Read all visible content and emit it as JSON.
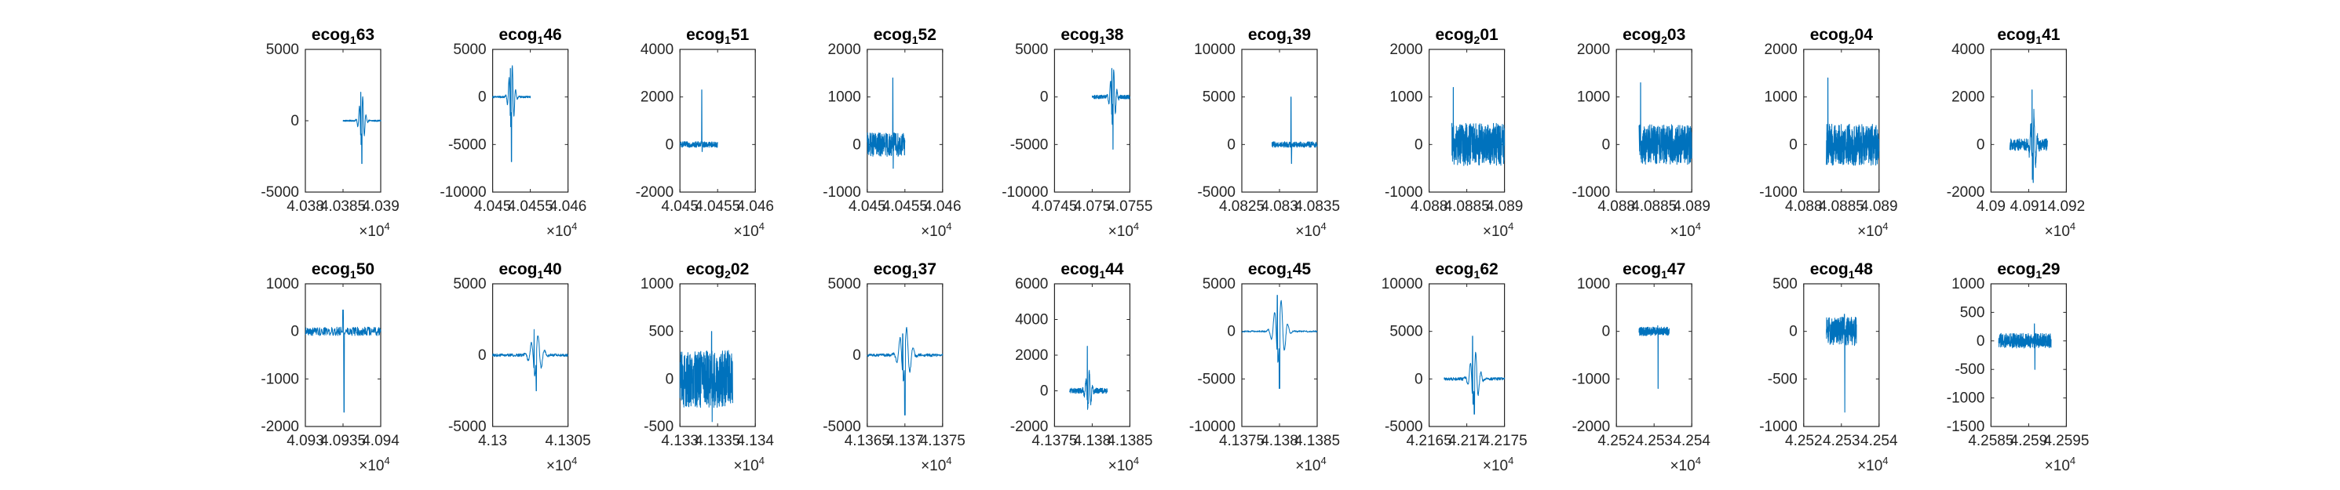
{
  "chart_data": [
    {
      "type": "line",
      "title": {
        "base": "ecog",
        "sub": "1",
        "rest": "63"
      },
      "xlim": [
        4.038,
        4.039
      ],
      "ylim": [
        -5000,
        5000
      ],
      "xticks": [
        "4.038",
        "4.0385",
        "4.039"
      ],
      "yticks": [
        "-5000",
        "0",
        "5000"
      ],
      "x_multiplier": "×10",
      "x_exponent": "4",
      "trace": {
        "x0": 4.0385,
        "x1": 4.039,
        "base": 0,
        "spike": -3000,
        "spikePeak": 2000,
        "spikeAt": 0.5,
        "noise": 50,
        "shape": "wave"
      }
    },
    {
      "type": "line",
      "title": {
        "base": "ecog",
        "sub": "1",
        "rest": "46"
      },
      "xlim": [
        4.045,
        4.046
      ],
      "ylim": [
        -10000,
        5000
      ],
      "xticks": [
        "4.045",
        "4.0455",
        "4.046"
      ],
      "yticks": [
        "-10000",
        "-5000",
        "0",
        "5000"
      ],
      "x_multiplier": "×10",
      "x_exponent": "4",
      "trace": {
        "x0": 4.045,
        "x1": 4.0455,
        "base": 0,
        "spike": -6800,
        "spikePeak": 3000,
        "spikeAt": 0.5,
        "noise": 100,
        "shape": "wave"
      }
    },
    {
      "type": "line",
      "title": {
        "base": "ecog",
        "sub": "1",
        "rest": "51"
      },
      "xlim": [
        4.045,
        4.046
      ],
      "ylim": [
        -2000,
        4000
      ],
      "xticks": [
        "4.045",
        "4.0455",
        "4.046"
      ],
      "yticks": [
        "-2000",
        "0",
        "2000",
        "4000"
      ],
      "x_multiplier": "×10",
      "x_exponent": "4",
      "trace": {
        "x0": 4.045,
        "x1": 4.0455,
        "base": 0,
        "spike": -300,
        "spikePeak": 2300,
        "spikeAt": 0.58,
        "noise": 120,
        "shape": "spike"
      }
    },
    {
      "type": "line",
      "title": {
        "base": "ecog",
        "sub": "1",
        "rest": "52"
      },
      "xlim": [
        4.045,
        4.046
      ],
      "ylim": [
        -1000,
        2000
      ],
      "xticks": [
        "4.045",
        "4.0455",
        "4.046"
      ],
      "yticks": [
        "-1000",
        "0",
        "1000",
        "2000"
      ],
      "x_multiplier": "×10",
      "x_exponent": "4",
      "trace": {
        "x0": 4.045,
        "x1": 4.0455,
        "base": 0,
        "spike": -500,
        "spikePeak": 1400,
        "spikeAt": 0.68,
        "noise": 250,
        "shape": "spike"
      }
    },
    {
      "type": "line",
      "title": {
        "base": "ecog",
        "sub": "1",
        "rest": "38"
      },
      "xlim": [
        4.0745,
        4.0755
      ],
      "ylim": [
        -10000,
        5000
      ],
      "xticks": [
        "4.0745",
        "4.075",
        "4.0755"
      ],
      "yticks": [
        "-10000",
        "-5000",
        "0",
        "5000"
      ],
      "x_multiplier": "×10",
      "x_exponent": "4",
      "trace": {
        "x0": 4.075,
        "x1": 4.0755,
        "base": 0,
        "spike": -5500,
        "spikePeak": 3000,
        "spikeAt": 0.55,
        "noise": 200,
        "shape": "wave"
      }
    },
    {
      "type": "line",
      "title": {
        "base": "ecog",
        "sub": "1",
        "rest": "39"
      },
      "xlim": [
        4.0825,
        4.0835
      ],
      "ylim": [
        -5000,
        10000
      ],
      "xticks": [
        "4.0825",
        "4.083",
        "4.0835"
      ],
      "yticks": [
        "-5000",
        "0",
        "5000",
        "10000"
      ],
      "x_multiplier": "×10",
      "x_exponent": "4",
      "trace": {
        "x0": 4.0829,
        "x1": 4.0835,
        "base": 0,
        "spike": -2000,
        "spikePeak": 5000,
        "spikeAt": 0.42,
        "noise": 300,
        "shape": "spike"
      }
    },
    {
      "type": "line",
      "title": {
        "base": "ecog",
        "sub": "2",
        "rest": "01"
      },
      "xlim": [
        4.088,
        4.089
      ],
      "ylim": [
        -1000,
        2000
      ],
      "xticks": [
        "4.088",
        "4.0885",
        "4.089"
      ],
      "yticks": [
        "-1000",
        "0",
        "1000",
        "2000"
      ],
      "x_multiplier": "×10",
      "x_exponent": "4",
      "trace": {
        "x0": 4.0883,
        "x1": 4.089,
        "base": 0,
        "spike": -300,
        "spikePeak": 1200,
        "spikeAt": 0.03,
        "noise": 450,
        "shape": "noise"
      }
    },
    {
      "type": "line",
      "title": {
        "base": "ecog",
        "sub": "2",
        "rest": "03"
      },
      "xlim": [
        4.088,
        4.089
      ],
      "ylim": [
        -1000,
        2000
      ],
      "xticks": [
        "4.088",
        "4.0885",
        "4.089"
      ],
      "yticks": [
        "-1000",
        "0",
        "1000",
        "2000"
      ],
      "x_multiplier": "×10",
      "x_exponent": "4",
      "trace": {
        "x0": 4.0883,
        "x1": 4.089,
        "base": 0,
        "spike": -300,
        "spikePeak": 1300,
        "spikeAt": 0.03,
        "noise": 420,
        "shape": "noise"
      }
    },
    {
      "type": "line",
      "title": {
        "base": "ecog",
        "sub": "2",
        "rest": "04"
      },
      "xlim": [
        4.088,
        4.089
      ],
      "ylim": [
        -1000,
        2000
      ],
      "xticks": [
        "4.088",
        "4.0885",
        "4.089"
      ],
      "yticks": [
        "-1000",
        "0",
        "1000",
        "2000"
      ],
      "x_multiplier": "×10",
      "x_exponent": "4",
      "trace": {
        "x0": 4.0883,
        "x1": 4.089,
        "base": 0,
        "spike": -300,
        "spikePeak": 1400,
        "spikeAt": 0.03,
        "noise": 440,
        "shape": "noise"
      }
    },
    {
      "type": "line",
      "title": {
        "base": "ecog",
        "sub": "1",
        "rest": "41"
      },
      "xlim": [
        4.09,
        4.092
      ],
      "ylim": [
        -2000,
        4000
      ],
      "xticks": [
        "4.09",
        "4.091",
        "4.092"
      ],
      "yticks": [
        "-2000",
        "0",
        "2000",
        "4000"
      ],
      "x_multiplier": "×10",
      "x_exponent": "4",
      "trace": {
        "x0": 4.0905,
        "x1": 4.0915,
        "base": 0,
        "spike": -1600,
        "spikePeak": 2300,
        "spikeAt": 0.62,
        "noise": 250,
        "shape": "wave"
      }
    },
    {
      "type": "line",
      "title": {
        "base": "ecog",
        "sub": "1",
        "rest": "50"
      },
      "xlim": [
        4.093,
        4.094
      ],
      "ylim": [
        -2000,
        1000
      ],
      "xticks": [
        "4.093",
        "4.0935",
        "4.094"
      ],
      "yticks": [
        "-2000",
        "-1000",
        "0",
        "1000"
      ],
      "x_multiplier": "×10",
      "x_exponent": "4",
      "trace": {
        "x0": 4.093,
        "x1": 4.094,
        "base": 0,
        "spike": -1700,
        "spikePeak": 450,
        "spikeAt": 0.5,
        "noise": 90,
        "shape": "spike"
      }
    },
    {
      "type": "line",
      "title": {
        "base": "ecog",
        "sub": "1",
        "rest": "40"
      },
      "xlim": [
        4.13,
        4.1305
      ],
      "ylim": [
        -5000,
        5000
      ],
      "xticks": [
        "4.13",
        "4.1305"
      ],
      "yticks": [
        "-5000",
        "0",
        "5000"
      ],
      "x_multiplier": "×10",
      "x_exponent": "4",
      "trace": {
        "x0": 4.13,
        "x1": 4.1305,
        "base": 0,
        "spike": -2500,
        "spikePeak": 1800,
        "spikeAt": 0.58,
        "noise": 100,
        "shape": "wave"
      }
    },
    {
      "type": "line",
      "title": {
        "base": "ecog",
        "sub": "2",
        "rest": "02"
      },
      "xlim": [
        4.133,
        4.134
      ],
      "ylim": [
        -500,
        1000
      ],
      "xticks": [
        "4.133",
        "4.1335",
        "4.134"
      ],
      "yticks": [
        "-500",
        "0",
        "500",
        "1000"
      ],
      "x_multiplier": "×10",
      "x_exponent": "4",
      "trace": {
        "x0": 4.133,
        "x1": 4.1337,
        "base": 0,
        "spike": -450,
        "spikePeak": 500,
        "spikeAt": 0.6,
        "noise": 300,
        "shape": "noise"
      }
    },
    {
      "type": "line",
      "title": {
        "base": "ecog",
        "sub": "1",
        "rest": "37"
      },
      "xlim": [
        4.1365,
        4.1375
      ],
      "ylim": [
        -5000,
        5000
      ],
      "xticks": [
        "4.1365",
        "4.137",
        "4.1375"
      ],
      "yticks": [
        "-5000",
        "0",
        "5000"
      ],
      "x_multiplier": "×10",
      "x_exponent": "4",
      "trace": {
        "x0": 4.1365,
        "x1": 4.1375,
        "base": 0,
        "spike": -4200,
        "spikePeak": 1500,
        "spikeAt": 0.5,
        "noise": 100,
        "shape": "wave"
      }
    },
    {
      "type": "line",
      "title": {
        "base": "ecog",
        "sub": "1",
        "rest": "44"
      },
      "xlim": [
        4.1375,
        4.1385
      ],
      "ylim": [
        -2000,
        6000
      ],
      "xticks": [
        "4.1375",
        "4.138",
        "4.1385"
      ],
      "yticks": [
        "-2000",
        "0",
        "2000",
        "4000",
        "6000"
      ],
      "x_multiplier": "×10",
      "x_exponent": "4",
      "trace": {
        "x0": 4.1377,
        "x1": 4.1382,
        "base": 0,
        "spike": -700,
        "spikePeak": 2500,
        "spikeAt": 0.5,
        "noise": 150,
        "shape": "wave"
      }
    },
    {
      "type": "line",
      "title": {
        "base": "ecog",
        "sub": "1",
        "rest": "45"
      },
      "xlim": [
        4.1375,
        4.1385
      ],
      "ylim": [
        -10000,
        5000
      ],
      "xticks": [
        "4.1375",
        "4.138",
        "4.1385"
      ],
      "yticks": [
        "-10000",
        "-5000",
        "0",
        "5000"
      ],
      "x_multiplier": "×10",
      "x_exponent": "4",
      "trace": {
        "x0": 4.1375,
        "x1": 4.1385,
        "base": 0,
        "spike": -6000,
        "spikePeak": 3800,
        "spikeAt": 0.5,
        "noise": 80,
        "shape": "wave"
      }
    },
    {
      "type": "line",
      "title": {
        "base": "ecog",
        "sub": "1",
        "rest": "62"
      },
      "xlim": [
        4.2165,
        4.2175
      ],
      "ylim": [
        -5000,
        10000
      ],
      "xticks": [
        "4.2165",
        "4.217",
        "4.2175"
      ],
      "yticks": [
        "-5000",
        "0",
        "5000",
        "10000"
      ],
      "x_multiplier": "×10",
      "x_exponent": "4",
      "trace": {
        "x0": 4.2167,
        "x1": 4.2175,
        "base": 0,
        "spike": -3700,
        "spikePeak": 4500,
        "spikeAt": 0.5,
        "noise": 150,
        "shape": "wave"
      }
    },
    {
      "type": "line",
      "title": {
        "base": "ecog",
        "sub": "1",
        "rest": "47"
      },
      "xlim": [
        4.252,
        4.254
      ],
      "ylim": [
        -2000,
        1000
      ],
      "xticks": [
        "4.252",
        "4.253",
        "4.254"
      ],
      "yticks": [
        "-2000",
        "-1000",
        "0",
        "1000"
      ],
      "x_multiplier": "×10",
      "x_exponent": "4",
      "trace": {
        "x0": 4.2526,
        "x1": 4.2534,
        "base": 0,
        "spike": -1200,
        "spikePeak": 120,
        "spikeAt": 0.62,
        "noise": 90,
        "shape": "spike"
      }
    },
    {
      "type": "line",
      "title": {
        "base": "ecog",
        "sub": "1",
        "rest": "48"
      },
      "xlim": [
        4.252,
        4.254
      ],
      "ylim": [
        -1000,
        500
      ],
      "xticks": [
        "4.252",
        "4.253",
        "4.254"
      ],
      "yticks": [
        "-1000",
        "-500",
        "0",
        "500"
      ],
      "x_multiplier": "×10",
      "x_exponent": "4",
      "trace": {
        "x0": 4.2526,
        "x1": 4.2534,
        "base": 0,
        "spike": -850,
        "spikePeak": 180,
        "spikeAt": 0.6,
        "noise": 150,
        "shape": "spike"
      }
    },
    {
      "type": "line",
      "title": {
        "base": "ecog",
        "sub": "1",
        "rest": "29"
      },
      "xlim": [
        4.2585,
        4.2595
      ],
      "ylim": [
        -1500,
        1000
      ],
      "xticks": [
        "4.2585",
        "4.259",
        "4.2595"
      ],
      "yticks": [
        "-1500",
        "-1000",
        "-500",
        "0",
        "500",
        "1000"
      ],
      "x_multiplier": "×10",
      "x_exponent": "4",
      "trace": {
        "x0": 4.2586,
        "x1": 4.2593,
        "base": 0,
        "spike": -500,
        "spikePeak": 300,
        "spikeAt": 0.68,
        "noise": 130,
        "shape": "noise"
      }
    }
  ]
}
